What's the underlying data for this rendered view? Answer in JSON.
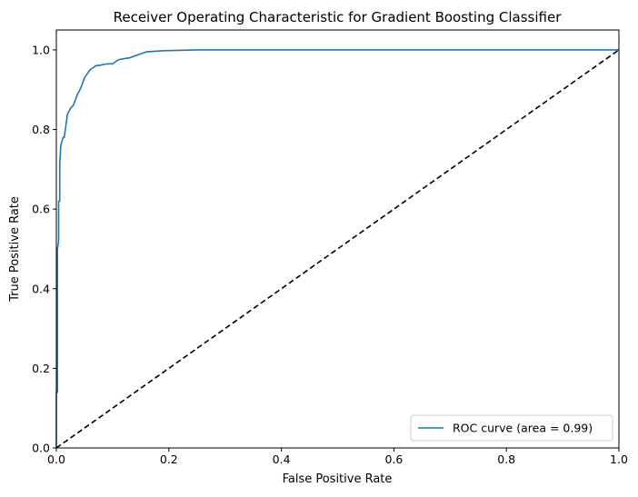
{
  "chart_data": {
    "type": "line",
    "title": "Receiver Operating Characteristic for Gradient Boosting Classifier",
    "xlabel": "False Positive Rate",
    "ylabel": "True Positive Rate",
    "xlim": [
      0.0,
      1.0
    ],
    "ylim": [
      0.0,
      1.05
    ],
    "xticks": [
      "0.0",
      "0.2",
      "0.4",
      "0.6",
      "0.8",
      "1.0"
    ],
    "yticks": [
      "0.0",
      "0.2",
      "0.4",
      "0.6",
      "0.8",
      "1.0"
    ],
    "grid": false,
    "legend_position": "lower-right",
    "series": [
      {
        "name": "ROC curve (area = 0.99)",
        "color": "#1f77b4",
        "style": "solid",
        "x": [
          0.0,
          0.0,
          0.002,
          0.002,
          0.004,
          0.004,
          0.006,
          0.006,
          0.008,
          0.01,
          0.012,
          0.014,
          0.016,
          0.02,
          0.022,
          0.026,
          0.03,
          0.034,
          0.038,
          0.042,
          0.045,
          0.05,
          0.055,
          0.06,
          0.065,
          0.07,
          0.08,
          0.09,
          0.1,
          0.11,
          0.12,
          0.13,
          0.15,
          0.16,
          0.19,
          0.25,
          0.4,
          0.6,
          0.8,
          1.0
        ],
        "y": [
          0.0,
          0.14,
          0.14,
          0.5,
          0.52,
          0.62,
          0.62,
          0.71,
          0.76,
          0.77,
          0.78,
          0.78,
          0.8,
          0.84,
          0.845,
          0.855,
          0.86,
          0.875,
          0.89,
          0.9,
          0.91,
          0.93,
          0.94,
          0.95,
          0.955,
          0.96,
          0.962,
          0.965,
          0.965,
          0.975,
          0.978,
          0.98,
          0.99,
          0.995,
          0.998,
          1.0,
          1.0,
          1.0,
          1.0,
          1.0
        ]
      },
      {
        "name": "",
        "color": "#000000",
        "style": "dashed",
        "x": [
          0.0,
          1.0
        ],
        "y": [
          0.0,
          1.0
        ]
      }
    ]
  }
}
